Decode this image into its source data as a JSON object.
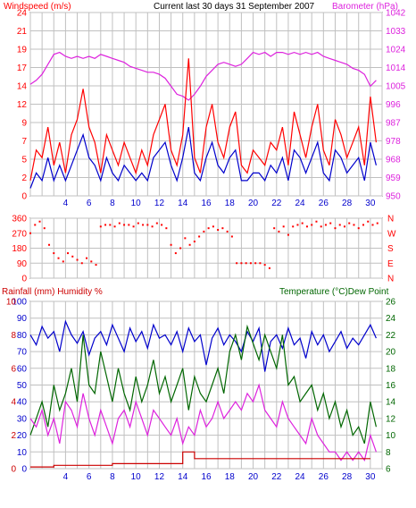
{
  "colors": {
    "wind": "#ff0000",
    "gust": "#0000cc",
    "baro": "#dd22dd",
    "dir": "#ff0000",
    "rain": "#cc0000",
    "humidity": "#0000cc",
    "temperature": "#006600",
    "dewpoint": "#dd22dd",
    "grid": "#c0c0c0",
    "text": "#000000"
  },
  "chart_data": [
    {
      "type": "line",
      "title": "Current last 30 days 31 September 2007",
      "ylabel_left": "Windspeed (m/s)",
      "ylabel_right": "Barometer (hPa)",
      "x_ticks": [
        "4",
        "6",
        "8",
        "10",
        "12",
        "14",
        "16",
        "18",
        "20",
        "22",
        "24",
        "26",
        "28",
        "30"
      ],
      "xlim": [
        1,
        31
      ],
      "ylim_left": [
        0,
        24
      ],
      "yticks_left": [
        "0",
        "2",
        "5",
        "7",
        "9",
        "12",
        "14",
        "17",
        "19",
        "21",
        "24"
      ],
      "ylim_right": [
        950,
        1042
      ],
      "yticks_right": [
        "950",
        "959",
        "968",
        "978",
        "987",
        "996",
        "1005",
        "1014",
        "1024",
        "1033",
        "1042"
      ],
      "grid": true,
      "series": [
        {
          "axis": "right",
          "color_key": "baro",
          "x": [
            1,
            1.5,
            2,
            2.5,
            3,
            3.5,
            4,
            4.5,
            5,
            5.5,
            6,
            6.5,
            7,
            7.5,
            8,
            8.5,
            9,
            9.5,
            10,
            10.5,
            11,
            11.5,
            12,
            12.5,
            13,
            13.5,
            14,
            14.5,
            15,
            15.5,
            16,
            16.5,
            17,
            17.5,
            18,
            18.5,
            19,
            19.5,
            20,
            20.5,
            21,
            21.5,
            22,
            22.5,
            23,
            23.5,
            24,
            24.5,
            25,
            25.5,
            26,
            26.5,
            27,
            27.5,
            28,
            28.5,
            29,
            29.5,
            30,
            30.5
          ],
          "y": [
            1006,
            1008,
            1011,
            1016,
            1021,
            1022,
            1020,
            1019,
            1020,
            1019,
            1020,
            1019,
            1021,
            1020,
            1019,
            1018,
            1017,
            1015,
            1014,
            1013,
            1012,
            1012,
            1011,
            1009,
            1005,
            1001,
            1000,
            998,
            1001,
            1005,
            1010,
            1013,
            1016,
            1017,
            1016,
            1015,
            1016,
            1019,
            1022,
            1021,
            1022,
            1020,
            1022,
            1022,
            1021,
            1022,
            1021,
            1022,
            1021,
            1022,
            1020,
            1019,
            1018,
            1017,
            1016,
            1014,
            1013,
            1011,
            1005,
            1008
          ]
        },
        {
          "axis": "left",
          "color_key": "wind",
          "x": [
            1,
            1.5,
            2,
            2.5,
            3,
            3.5,
            4,
            4.5,
            5,
            5.5,
            6,
            6.5,
            7,
            7.5,
            8,
            8.5,
            9,
            9.5,
            10,
            10.5,
            11,
            11.5,
            12,
            12.5,
            13,
            13.5,
            14,
            14.5,
            15,
            15.5,
            16,
            16.5,
            17,
            17.5,
            18,
            18.5,
            19,
            19.5,
            20,
            20.5,
            21,
            21.5,
            22,
            22.5,
            23,
            23.5,
            24,
            24.5,
            25,
            25.5,
            26,
            26.5,
            27,
            27.5,
            28,
            28.5,
            29,
            29.5,
            30,
            30.5
          ],
          "y": [
            2,
            6,
            5,
            9,
            4,
            7,
            3,
            8,
            10,
            14,
            9,
            7,
            3,
            8,
            6,
            4,
            7,
            5,
            3,
            6,
            4,
            8,
            10,
            12,
            6,
            4,
            8,
            18,
            5,
            3,
            9,
            12,
            7,
            5,
            9,
            11,
            4,
            3,
            6,
            5,
            4,
            7,
            6,
            9,
            4,
            11,
            8,
            5,
            9,
            12,
            6,
            4,
            10,
            8,
            5,
            7,
            9,
            4,
            13,
            7
          ]
        },
        {
          "axis": "left",
          "color_key": "gust",
          "x": [
            1,
            1.5,
            2,
            2.5,
            3,
            3.5,
            4,
            4.5,
            5,
            5.5,
            6,
            6.5,
            7,
            7.5,
            8,
            8.5,
            9,
            9.5,
            10,
            10.5,
            11,
            11.5,
            12,
            12.5,
            13,
            13.5,
            14,
            14.5,
            15,
            15.5,
            16,
            16.5,
            17,
            17.5,
            18,
            18.5,
            19,
            19.5,
            20,
            20.5,
            21,
            21.5,
            22,
            22.5,
            23,
            23.5,
            24,
            24.5,
            25,
            25.5,
            26,
            26.5,
            27,
            27.5,
            28,
            28.5,
            29,
            29.5,
            30,
            30.5
          ],
          "y": [
            1,
            3,
            2,
            5,
            2,
            4,
            2,
            4,
            6,
            8,
            5,
            4,
            2,
            5,
            3,
            2,
            4,
            3,
            2,
            3,
            2,
            5,
            6,
            7,
            4,
            2,
            5,
            9,
            3,
            2,
            5,
            7,
            4,
            3,
            5,
            6,
            2,
            2,
            3,
            3,
            2,
            4,
            3,
            5,
            2,
            6,
            5,
            3,
            5,
            7,
            3,
            2,
            6,
            5,
            3,
            4,
            5,
            2,
            7,
            4
          ]
        }
      ]
    },
    {
      "type": "scatter",
      "ylabel_left": "",
      "xlim": [
        1,
        31
      ],
      "ylim_left": [
        0,
        360
      ],
      "yticks_left": [
        "0",
        "90",
        "180",
        "270",
        "360"
      ],
      "ylabels_right": [
        "N",
        "E",
        "S",
        "W",
        "N"
      ],
      "grid": true,
      "series": [
        {
          "color_key": "dir",
          "x": [
            1,
            1.4,
            1.8,
            2.2,
            2.6,
            3,
            3.4,
            3.8,
            4.2,
            4.6,
            5,
            5.4,
            5.8,
            6.2,
            6.6,
            7,
            7.4,
            7.8,
            8.2,
            8.6,
            9,
            9.4,
            9.8,
            10.2,
            10.6,
            11,
            11.4,
            11.8,
            12.2,
            12.6,
            13,
            13.4,
            13.8,
            14.2,
            14.6,
            15,
            15.4,
            15.8,
            16.2,
            16.6,
            17,
            17.4,
            17.8,
            18.2,
            18.6,
            19,
            19.4,
            19.8,
            20.2,
            20.6,
            21,
            21.4,
            21.8,
            22.2,
            22.6,
            23,
            23.4,
            23.8,
            24.2,
            24.6,
            25,
            25.4,
            25.8,
            26.2,
            26.6,
            27,
            27.4,
            27.8,
            28.2,
            28.6,
            29,
            29.4,
            29.8,
            30.2,
            30.6
          ],
          "y": [
            270,
            320,
            340,
            300,
            200,
            150,
            120,
            100,
            150,
            130,
            110,
            90,
            120,
            100,
            80,
            310,
            320,
            320,
            310,
            330,
            320,
            320,
            310,
            330,
            320,
            320,
            310,
            330,
            320,
            300,
            200,
            150,
            180,
            240,
            200,
            220,
            250,
            280,
            300,
            310,
            290,
            300,
            280,
            250,
            90,
            90,
            90,
            90,
            90,
            90,
            80,
            60,
            300,
            280,
            310,
            260,
            310,
            320,
            330,
            310,
            320,
            340,
            310,
            320,
            330,
            300,
            320,
            310,
            330,
            320,
            300,
            320,
            340,
            320,
            330
          ]
        }
      ]
    },
    {
      "type": "line",
      "ylabel_left": "Rainfall (mm)  Humidity %",
      "ylabel_right": "Temperature (°C)Dew Point",
      "xlim": [
        1,
        31
      ],
      "ylim_left": [
        0,
        100
      ],
      "yticks_left": [
        "0",
        "10",
        "20",
        "30",
        "40",
        "50",
        "60",
        "70",
        "80",
        "90",
        "100"
      ],
      "yticks_left_inner": [
        "0",
        "2",
        "4",
        "6",
        "8",
        "10"
      ],
      "ylim_right": [
        6,
        26
      ],
      "yticks_right": [
        "6",
        "8",
        "10",
        "12",
        "14",
        "16",
        "18",
        "20",
        "22",
        "24",
        "26"
      ],
      "grid": true,
      "series": [
        {
          "axis": "left",
          "color_key": "humidity",
          "x": [
            1,
            1.5,
            2,
            2.5,
            3,
            3.5,
            4,
            4.5,
            5,
            5.5,
            6,
            6.5,
            7,
            7.5,
            8,
            8.5,
            9,
            9.5,
            10,
            10.5,
            11,
            11.5,
            12,
            12.5,
            13,
            13.5,
            14,
            14.5,
            15,
            15.5,
            16,
            16.5,
            17,
            17.5,
            18,
            18.5,
            19,
            19.5,
            20,
            20.5,
            21,
            21.5,
            22,
            22.5,
            23,
            23.5,
            24,
            24.5,
            25,
            25.5,
            26,
            26.5,
            27,
            27.5,
            28,
            28.5,
            29,
            29.5,
            30,
            30.5
          ],
          "y": [
            80,
            74,
            85,
            78,
            82,
            70,
            88,
            80,
            75,
            82,
            68,
            78,
            82,
            74,
            86,
            78,
            70,
            84,
            76,
            82,
            72,
            86,
            78,
            80,
            74,
            82,
            70,
            84,
            76,
            80,
            62,
            78,
            84,
            74,
            80,
            76,
            70,
            82,
            76,
            84,
            58,
            76,
            80,
            72,
            84,
            74,
            78,
            66,
            82,
            74,
            80,
            70,
            76,
            82,
            72,
            78,
            74,
            80,
            86,
            78
          ]
        },
        {
          "axis": "right",
          "color_key": "temperature",
          "x": [
            1,
            1.5,
            2,
            2.5,
            3,
            3.5,
            4,
            4.5,
            5,
            5.5,
            6,
            6.5,
            7,
            7.5,
            8,
            8.5,
            9,
            9.5,
            10,
            10.5,
            11,
            11.5,
            12,
            12.5,
            13,
            13.5,
            14,
            14.5,
            15,
            15.5,
            16,
            16.5,
            17,
            17.5,
            18,
            18.5,
            19,
            19.5,
            20,
            20.5,
            21,
            21.5,
            22,
            22.5,
            23,
            23.5,
            24,
            24.5,
            25,
            25.5,
            26,
            26.5,
            27,
            27.5,
            28,
            28.5,
            29,
            29.5,
            30,
            30.5
          ],
          "y": [
            10,
            12,
            14,
            11,
            16,
            13,
            15,
            18,
            14,
            22,
            16,
            15,
            20,
            17,
            14,
            18,
            15,
            13,
            17,
            14,
            16,
            19,
            15,
            17,
            14,
            16,
            18,
            13,
            17,
            15,
            14,
            16,
            18,
            15,
            20,
            22,
            19,
            23,
            21,
            19,
            22,
            20,
            18,
            22,
            16,
            17,
            14,
            15,
            16,
            13,
            15,
            12,
            14,
            11,
            13,
            10,
            11,
            9,
            14,
            11
          ]
        },
        {
          "axis": "right",
          "color_key": "dewpoint",
          "x": [
            1,
            1.5,
            2,
            2.5,
            3,
            3.5,
            4,
            4.5,
            5,
            5.5,
            6,
            6.5,
            7,
            7.5,
            8,
            8.5,
            9,
            9.5,
            10,
            10.5,
            11,
            11.5,
            12,
            12.5,
            13,
            13.5,
            14,
            14.5,
            15,
            15.5,
            16,
            16.5,
            17,
            17.5,
            18,
            18.5,
            19,
            19.5,
            20,
            20.5,
            21,
            21.5,
            22,
            22.5,
            23,
            23.5,
            24,
            24.5,
            25,
            25.5,
            26,
            26.5,
            27,
            27.5,
            28,
            28.5,
            29,
            29.5,
            30,
            30.5
          ],
          "y": [
            12,
            11,
            13,
            10,
            12,
            9,
            14,
            13,
            11,
            15,
            12,
            10,
            13,
            11,
            9,
            12,
            13,
            11,
            14,
            12,
            10,
            13,
            12,
            11,
            10,
            12,
            9,
            11,
            10,
            13,
            11,
            12,
            14,
            12,
            13,
            14,
            13,
            15,
            14,
            16,
            13,
            12,
            11,
            14,
            12,
            11,
            10,
            9,
            12,
            10,
            9,
            8,
            8,
            7,
            8,
            7,
            8,
            7,
            10,
            8
          ]
        },
        {
          "axis": "left",
          "color_key": "rain",
          "x": [
            1,
            2,
            3,
            4,
            5,
            6,
            7,
            8,
            9,
            10,
            11,
            12,
            13,
            14,
            15,
            16,
            17,
            18,
            19,
            20,
            21,
            22,
            23,
            24,
            25,
            26,
            27,
            28,
            29,
            30
          ],
          "y": [
            1,
            1,
            2,
            2,
            2,
            2,
            2,
            3,
            3,
            3,
            3,
            3,
            3,
            10,
            6,
            6,
            6,
            6,
            6,
            6,
            6,
            6,
            6,
            6,
            6,
            6,
            6,
            6,
            6,
            6
          ]
        }
      ]
    }
  ]
}
